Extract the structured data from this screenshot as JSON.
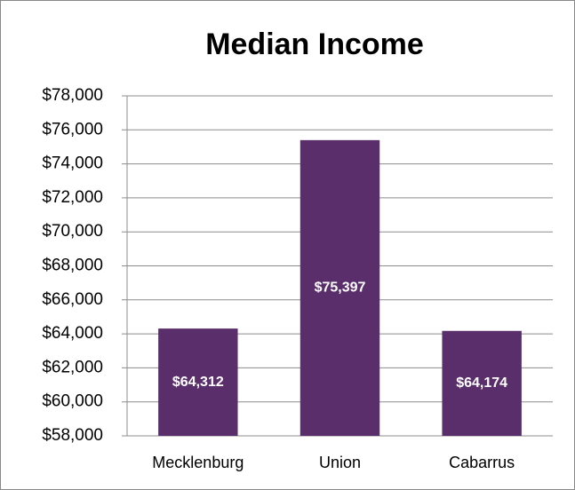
{
  "chart_data": {
    "type": "bar",
    "title": "Median Income",
    "categories": [
      "Mecklenburg",
      "Union",
      "Cabarrus"
    ],
    "values": [
      64312,
      75397,
      64174
    ],
    "value_labels": [
      "$64,312",
      "$75,397",
      "$64,174"
    ],
    "color": "#5a2d6b",
    "ylim": [
      58000,
      78000
    ],
    "yticks": [
      {
        "value": 58000,
        "label": "$58,000"
      },
      {
        "value": 60000,
        "label": "$60,000"
      },
      {
        "value": 62000,
        "label": "$62,000"
      },
      {
        "value": 64000,
        "label": "$64,000"
      },
      {
        "value": 66000,
        "label": "$66,000"
      },
      {
        "value": 68000,
        "label": "$68,000"
      },
      {
        "value": 70000,
        "label": "$70,000"
      },
      {
        "value": 72000,
        "label": "$72,000"
      },
      {
        "value": 74000,
        "label": "$74,000"
      },
      {
        "value": 76000,
        "label": "$76,000"
      },
      {
        "value": 78000,
        "label": "$78,000"
      }
    ],
    "grid": true
  }
}
